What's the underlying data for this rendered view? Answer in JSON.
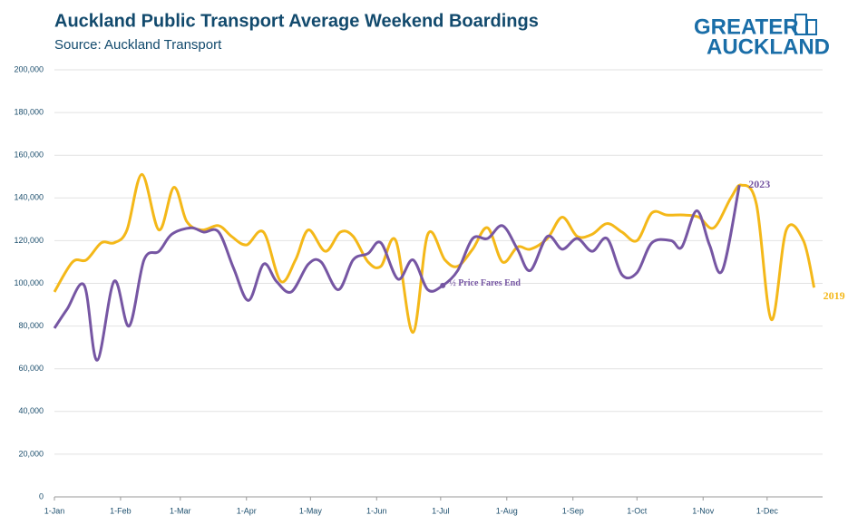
{
  "chart_data": {
    "type": "line",
    "title": "Auckland Public Transport Average Weekend Boardings",
    "subtitle": "Source: Auckland Transport",
    "logo": [
      "GREATER",
      "AUCKLAND"
    ],
    "annotation": "½ Price Fares End",
    "xlim": [
      0,
      360
    ],
    "xticks": [
      {
        "value": 0,
        "label": "1-Jan"
      },
      {
        "value": 31,
        "label": "1-Feb"
      },
      {
        "value": 59,
        "label": "1-Mar"
      },
      {
        "value": 90,
        "label": "1-Apr"
      },
      {
        "value": 120,
        "label": "1-May"
      },
      {
        "value": 151,
        "label": "1-Jun"
      },
      {
        "value": 181,
        "label": "1-Jul"
      },
      {
        "value": 212,
        "label": "1-Aug"
      },
      {
        "value": 243,
        "label": "1-Sep"
      },
      {
        "value": 273,
        "label": "1-Oct"
      },
      {
        "value": 304,
        "label": "1-Nov"
      },
      {
        "value": 334,
        "label": "1-Dec"
      }
    ],
    "ylim": [
      0,
      200000
    ],
    "yticks": [
      0,
      {
        "value": 20000,
        "label": "20,000"
      },
      {
        "value": 40000,
        "label": "40,000"
      },
      {
        "value": 60000,
        "label": "60,000"
      },
      {
        "value": 80000,
        "label": "80,000"
      },
      {
        "value": 100000,
        "label": "100,000"
      },
      {
        "value": 120000,
        "label": "120,000"
      },
      {
        "value": 140000,
        "label": "140,000"
      },
      {
        "value": 160000,
        "label": "160,000"
      },
      {
        "value": 180000,
        "label": "180,000"
      },
      {
        "value": 200000,
        "label": "200,000"
      }
    ],
    "grid": true,
    "series": [
      {
        "name": "2019",
        "color": "#f4b819",
        "x": [
          0,
          8.5,
          15,
          22,
          28,
          34,
          41,
          49,
          56,
          62,
          69,
          77,
          83,
          90,
          98,
          106,
          113,
          119,
          127,
          134,
          140,
          147,
          153,
          160,
          168,
          175,
          183,
          189,
          196,
          203,
          210,
          217,
          223,
          231,
          238,
          245,
          252,
          259,
          266,
          273,
          280,
          287,
          295,
          302,
          309,
          317,
          322,
          329,
          336,
          343,
          351,
          356
        ],
        "values": [
          96000,
          110000,
          111000,
          119000,
          119000,
          125000,
          151000,
          125000,
          145000,
          129000,
          125000,
          127000,
          122000,
          118000,
          124000,
          101000,
          111000,
          125000,
          115000,
          124000,
          122000,
          110000,
          108000,
          120000,
          77000,
          123000,
          111000,
          108000,
          116000,
          126000,
          110000,
          117000,
          116000,
          121000,
          131000,
          122000,
          123000,
          128000,
          124000,
          120000,
          133000,
          132000,
          132000,
          131000,
          126000,
          140000,
          146000,
          137000,
          83000,
          125000,
          120000,
          98000
        ]
      },
      {
        "name": "2023",
        "color": "#7656a3",
        "x": [
          0,
          6,
          14,
          20,
          28,
          35,
          42,
          49,
          55,
          64,
          70,
          77,
          84,
          91,
          98,
          104,
          111,
          119,
          125,
          133,
          140,
          147,
          153,
          161,
          168,
          175,
          182,
          189,
          196,
          203,
          210,
          217,
          223,
          231,
          238,
          245,
          252,
          259,
          266,
          273,
          280,
          289,
          294,
          301,
          307,
          313,
          321
        ],
        "values": [
          79000,
          88000,
          99000,
          64000,
          101000,
          80000,
          111000,
          115000,
          123000,
          126000,
          124000,
          124000,
          107000,
          92000,
          109000,
          101000,
          96000,
          109000,
          110000,
          97000,
          111000,
          114000,
          119000,
          102000,
          111000,
          97000,
          99000,
          106000,
          121000,
          121000,
          127000,
          116000,
          106000,
          122000,
          116000,
          121000,
          115000,
          121000,
          104000,
          105000,
          119000,
          120000,
          117000,
          134000,
          118000,
          106000,
          146000
        ]
      }
    ]
  }
}
